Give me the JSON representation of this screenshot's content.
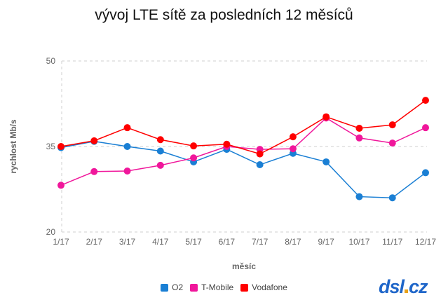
{
  "chart_data": {
    "type": "line",
    "title": "vývoj LTE sítě za posledních 12 měsíců",
    "xlabel": "měsíc",
    "ylabel": "rychlost Mb/s",
    "ylim": [
      20,
      50
    ],
    "yticks": [
      20,
      35,
      50
    ],
    "categories": [
      "1/17",
      "2/17",
      "3/17",
      "4/17",
      "5/17",
      "6/17",
      "7/17",
      "8/17",
      "9/17",
      "10/17",
      "11/17",
      "12/17"
    ],
    "grid": "dashed horizontal",
    "legend": "bottom",
    "series": [
      {
        "name": "O2",
        "color": "#1a7fd4",
        "values": [
          34.8,
          35.9,
          35.0,
          34.2,
          32.3,
          34.5,
          31.8,
          33.8,
          32.3,
          26.2,
          26.0,
          30.4
        ]
      },
      {
        "name": "T-Mobile",
        "color": "#f0179b",
        "values": [
          28.2,
          30.6,
          30.7,
          31.7,
          33.0,
          35.0,
          34.5,
          34.6,
          40.0,
          36.5,
          35.6,
          38.3
        ]
      },
      {
        "name": "Vodafone",
        "color": "#ff0000",
        "values": [
          35.0,
          36.0,
          38.3,
          36.2,
          35.1,
          35.4,
          33.7,
          36.7,
          40.2,
          38.2,
          38.8,
          43.1
        ]
      }
    ]
  },
  "logo": {
    "left": "dsl",
    "right": "cz"
  }
}
